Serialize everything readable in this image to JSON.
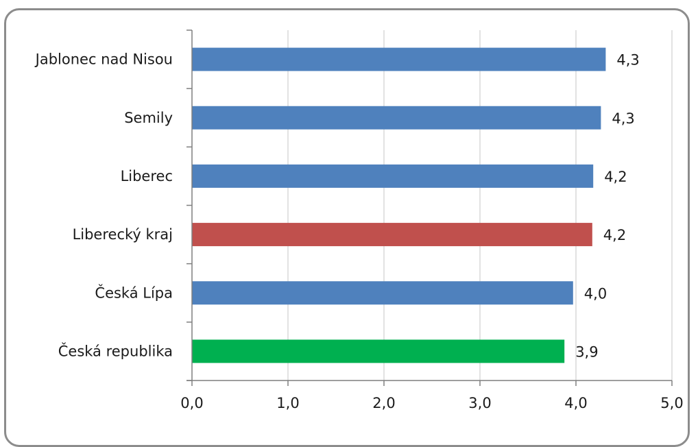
{
  "chart_data": {
    "type": "bar",
    "orientation": "horizontal",
    "categories": [
      "Jablonec nad Nisou",
      "Semily",
      "Liberec",
      "Liberecký kraj",
      "Česká Lípa",
      "Česká republika"
    ],
    "values": [
      4.31,
      4.26,
      4.18,
      4.17,
      3.97,
      3.88
    ],
    "data_labels": [
      "4,3",
      "4,3",
      "4,2",
      "4,2",
      "4,0",
      "3,9"
    ],
    "bar_colors": [
      "#4f81bd",
      "#4f81bd",
      "#4f81bd",
      "#c0504d",
      "#4f81bd",
      "#00b050"
    ],
    "xlim": [
      0,
      5
    ],
    "x_ticks": [
      0,
      1,
      2,
      3,
      4,
      5
    ],
    "x_tick_labels": [
      "0,0",
      "1,0",
      "2,0",
      "3,0",
      "4,0",
      "5,0"
    ],
    "grid": "vertical",
    "gridline_color": "#d9d9d9",
    "axis_color": "#7f7f7f",
    "legend": "none",
    "title": "",
    "xlabel": "",
    "ylabel": ""
  }
}
